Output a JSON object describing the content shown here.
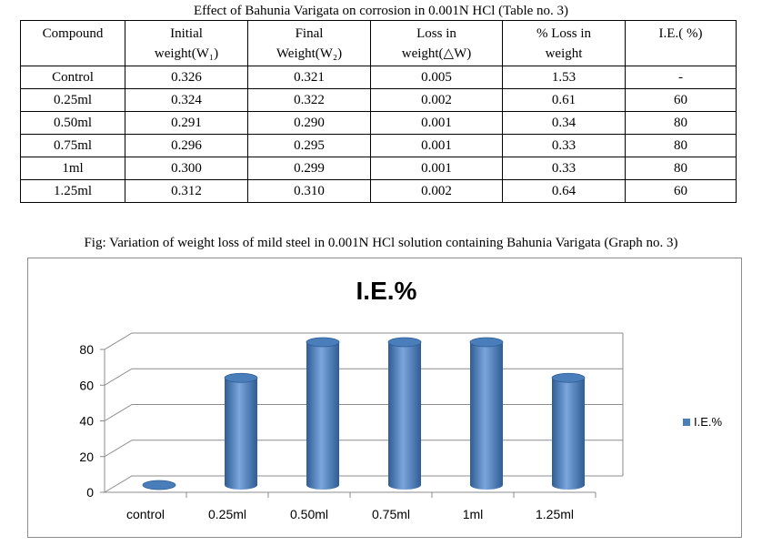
{
  "table": {
    "caption": "Effect of Bahunia Varigata on corrosion in 0.001N HCl (Table no. 3)",
    "headers": [
      {
        "line1": "Compound",
        "line2": ""
      },
      {
        "line1": "Initial",
        "line2": "weight(W₁)"
      },
      {
        "line1": "Final",
        "line2": "Weight(W₂)"
      },
      {
        "line1": "Loss in",
        "line2": "weight(△W)"
      },
      {
        "line1": "% Loss in",
        "line2": "weight"
      },
      {
        "line1": "I.E.( %)",
        "line2": ""
      }
    ],
    "rows": [
      [
        "Control",
        "0.326",
        "0.321",
        "0.005",
        "1.53",
        "-"
      ],
      [
        "0.25ml",
        "0.324",
        "0.322",
        "0.002",
        "0.61",
        "60"
      ],
      [
        "0.50ml",
        "0.291",
        "0.290",
        "0.001",
        "0.34",
        "80"
      ],
      [
        "0.75ml",
        "0.296",
        "0.295",
        "0.001",
        "0.33",
        "80"
      ],
      [
        "1ml",
        "0.300",
        "0.299",
        "0.001",
        "0.33",
        "80"
      ],
      [
        "1.25ml",
        "0.312",
        "0.310",
        "0.002",
        "0.64",
        "60"
      ]
    ]
  },
  "figure": {
    "caption": "Fig: Variation of weight loss of mild steel in 0.001N HCl solution containing Bahunia Varigata (Graph no. 3)"
  },
  "colors": {
    "bar": "#4a7ebb",
    "bar_dark": "#2f5c94",
    "bar_light": "#7aa6dd",
    "grid": "#8c8c8c"
  },
  "chart_data": {
    "type": "bar",
    "title": "I.E.%",
    "categories": [
      "control",
      "0.25ml",
      "0.50ml",
      "0.75ml",
      "1ml",
      "1.25ml"
    ],
    "series": [
      {
        "name": "I.E.%",
        "values": [
          0,
          60,
          80,
          80,
          80,
          60
        ]
      }
    ],
    "ylim": [
      0,
      80
    ],
    "yticks": [
      "0",
      "20",
      "40",
      "60",
      "80"
    ],
    "xlabel": "",
    "ylabel": "",
    "grid": true,
    "legend": "right",
    "style": "3d-cylinder"
  }
}
